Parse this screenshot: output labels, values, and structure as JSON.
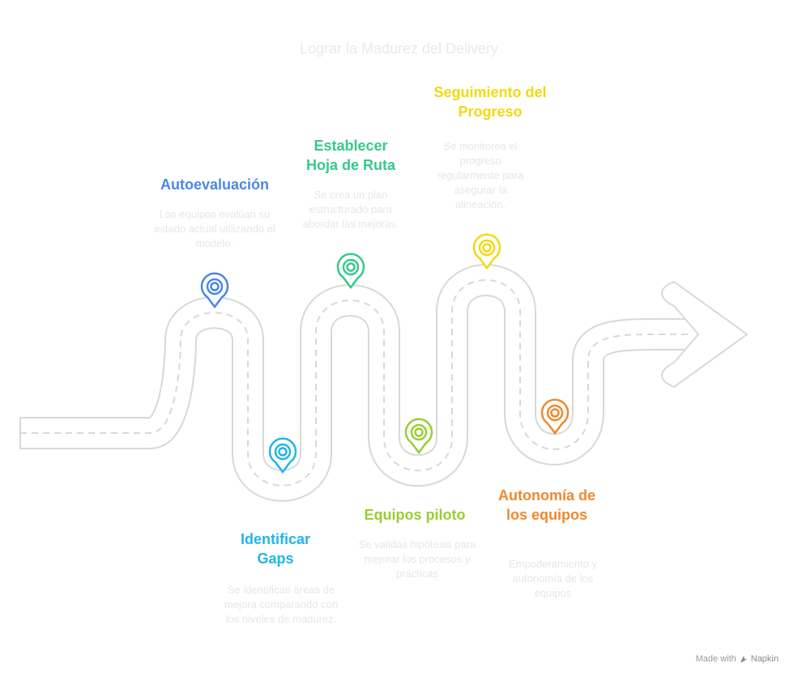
{
  "title": "Lograr la Madurez del Delivery",
  "steps": [
    {
      "title": "Autoevaluación",
      "description": "Los equipos evalúan su estado actual utilizando el modelo.",
      "color": "#4a86e8"
    },
    {
      "title": "Identificar Gaps",
      "description": "Se identifican áreas de mejora comparando con los niveles de madurez.",
      "color": "#1fb5e8"
    },
    {
      "title": "Establecer Hoja de Ruta",
      "description": "Se crea un plan estructurado para abordar las mejoras.",
      "color": "#36c98a"
    },
    {
      "title": "Equipos piloto",
      "description": "Se validas hipótesis para mejorar los procesos y prácticas",
      "color": "#9acd32"
    },
    {
      "title": "Seguimiento del Progreso",
      "description": "Se monitorea el progreso regularmente para asegurar la alineación.",
      "color": "#f2d90f"
    },
    {
      "title": "Autonomía de los equipos",
      "description": "Empoderamiento y autonomía de los equipos",
      "color": "#f0882d"
    }
  ],
  "credit": {
    "text": "Made with",
    "brand": "Napkin"
  }
}
